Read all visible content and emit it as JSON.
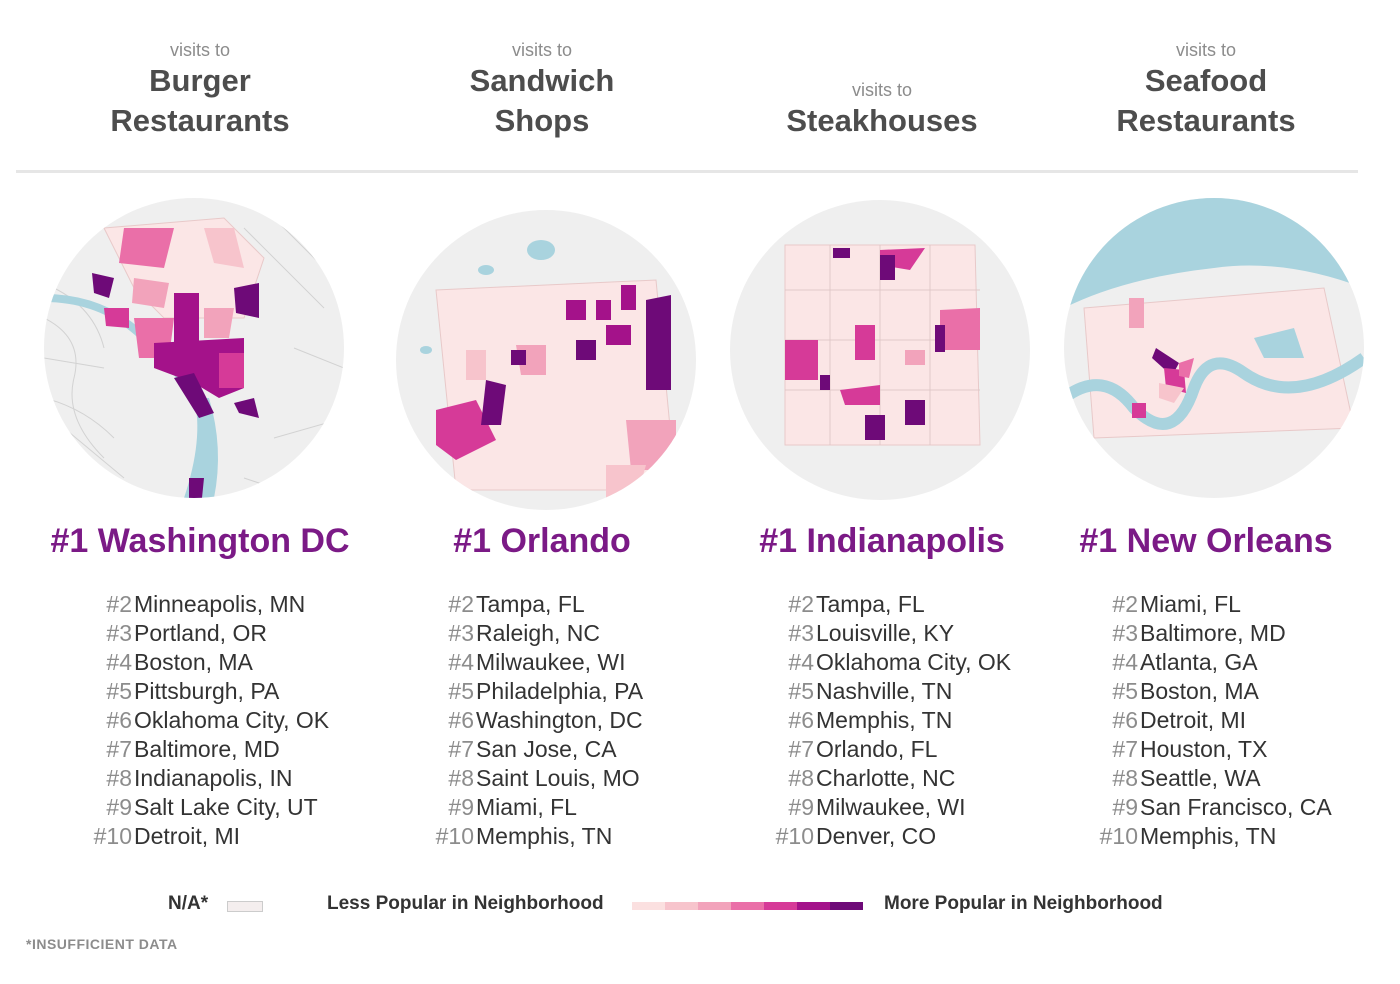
{
  "columns": [
    {
      "header_small": "visits to",
      "header_line1": "Burger",
      "header_line2": "Restaurants",
      "top": "#1  Washington DC",
      "ranks": [
        {
          "n": "#2",
          "city": "Minneapolis, MN"
        },
        {
          "n": "#3",
          "city": "Portland, OR"
        },
        {
          "n": "#4",
          "city": "Boston, MA"
        },
        {
          "n": "#5",
          "city": "Pittsburgh, PA"
        },
        {
          "n": "#6",
          "city": "Oklahoma City, OK"
        },
        {
          "n": "#7",
          "city": "Baltimore, MD"
        },
        {
          "n": "#8",
          "city": "Indianapolis, IN"
        },
        {
          "n": "#9",
          "city": "Salt Lake City, UT"
        },
        {
          "n": "#10",
          "city": "Detroit, MI"
        }
      ]
    },
    {
      "header_small": "visits to",
      "header_line1": "Sandwich",
      "header_line2": "Shops",
      "top": "#1  Orlando",
      "ranks": [
        {
          "n": "#2",
          "city": "Tampa, FL"
        },
        {
          "n": "#3",
          "city": "Raleigh, NC"
        },
        {
          "n": "#4",
          "city": "Milwaukee, WI"
        },
        {
          "n": "#5",
          "city": "Philadelphia, PA"
        },
        {
          "n": "#6",
          "city": "Washington, DC"
        },
        {
          "n": "#7",
          "city": "San Jose, CA"
        },
        {
          "n": "#8",
          "city": "Saint Louis, MO"
        },
        {
          "n": "#9",
          "city": "Miami, FL"
        },
        {
          "n": "#10",
          "city": "Memphis, TN"
        }
      ]
    },
    {
      "header_small": "visits to",
      "header_line1": "Steakhouses",
      "header_line2": "",
      "top": "#1  Indianapolis",
      "ranks": [
        {
          "n": "#2",
          "city": "Tampa, FL"
        },
        {
          "n": "#3",
          "city": "Louisville, KY"
        },
        {
          "n": "#4",
          "city": "Oklahoma City, OK"
        },
        {
          "n": "#5",
          "city": "Nashville, TN"
        },
        {
          "n": "#6",
          "city": "Memphis, TN"
        },
        {
          "n": "#7",
          "city": "Orlando, FL"
        },
        {
          "n": "#8",
          "city": "Charlotte, NC"
        },
        {
          "n": "#9",
          "city": "Milwaukee, WI"
        },
        {
          "n": "#10",
          "city": "Denver, CO"
        }
      ]
    },
    {
      "header_small": "visits to",
      "header_line1": "Seafood",
      "header_line2": "Restaurants",
      "top": "#1  New Orleans",
      "ranks": [
        {
          "n": "#2",
          "city": "Miami, FL"
        },
        {
          "n": "#3",
          "city": "Baltimore, MD"
        },
        {
          "n": "#4",
          "city": "Atlanta, GA"
        },
        {
          "n": "#5",
          "city": "Boston, MA"
        },
        {
          "n": "#6",
          "city": "Detroit, MI"
        },
        {
          "n": "#7",
          "city": "Houston, TX"
        },
        {
          "n": "#8",
          "city": "Seattle, WA"
        },
        {
          "n": "#9",
          "city": "San Francisco, CA"
        },
        {
          "n": "#10",
          "city": "Memphis, TN"
        }
      ]
    }
  ],
  "legend": {
    "na_label": "N/A*",
    "less_label": "Less Popular in Neighborhood",
    "more_label": "More Popular in Neighborhood",
    "scale_colors": [
      "#fbe0e0",
      "#f7c4cc",
      "#f2a3bb",
      "#ea6fa8",
      "#d63a98",
      "#a4128a",
      "#6e0a78"
    ],
    "na_color": "#f4eeee"
  },
  "footnote": "*INSUFFICIENT DATA",
  "colors": {
    "accent": "#7b1a86",
    "water": "#a9d3de",
    "land": "#efefef"
  }
}
